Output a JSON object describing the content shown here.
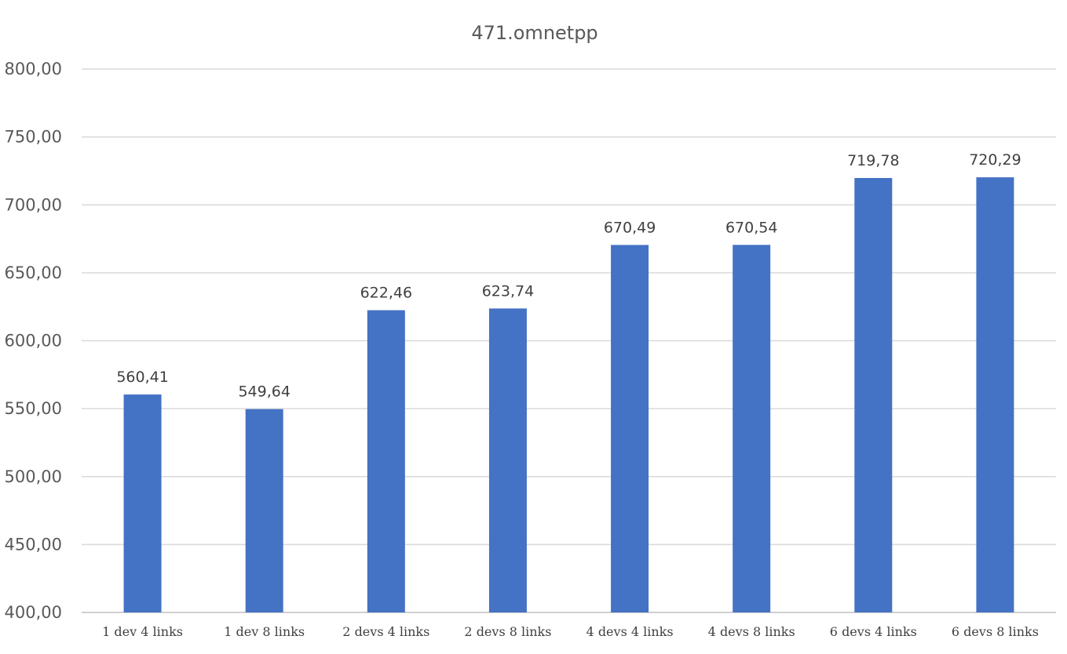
{
  "chart_data": {
    "type": "bar",
    "title": "471.omnetpp",
    "xlabel": "",
    "ylabel": "",
    "categories": [
      "1 dev 4 links",
      "1 dev 8 links",
      "2 devs 4 links",
      "2 devs 8 links",
      "4 devs 4 links",
      "4 devs 8 links",
      "6 devs 4 links",
      "6 devs 8 links"
    ],
    "values": [
      560.41,
      549.64,
      622.46,
      623.74,
      670.49,
      670.54,
      719.78,
      720.29
    ],
    "data_labels": [
      "560,41",
      "549,64",
      "622,46",
      "623,74",
      "670,49",
      "670,54",
      "719,78",
      "720,29"
    ],
    "ylim": [
      400,
      800
    ],
    "y_ticks": [
      400,
      450,
      500,
      550,
      600,
      650,
      700,
      750,
      800
    ],
    "y_tick_labels": [
      "400,00",
      "450,00",
      "500,00",
      "550,00",
      "600,00",
      "650,00",
      "700,00",
      "750,00",
      "800,00"
    ],
    "grid": true,
    "legend": "none",
    "bar_color": "#4472c4"
  }
}
